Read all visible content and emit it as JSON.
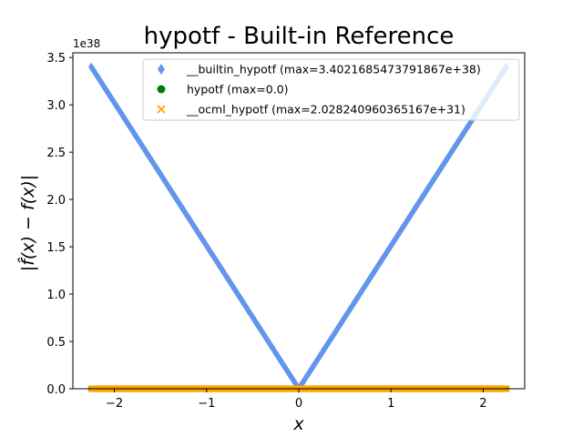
{
  "chart_data": {
    "type": "scatter",
    "title": "hypotf - Built-in Reference",
    "xlabel": "x",
    "ylabel": "|f̂(x) − f(x)|",
    "y_multiplier": "1e38",
    "xlim": [
      -2.45,
      2.45
    ],
    "ylim": [
      0,
      3.55
    ],
    "x_ticks": [
      -2,
      -1,
      0,
      1,
      2
    ],
    "x_tick_labels": [
      "−2",
      "−1",
      "0",
      "1",
      "2"
    ],
    "y_ticks": [
      0.0,
      0.5,
      1.0,
      1.5,
      2.0,
      2.5,
      3.0,
      3.5
    ],
    "y_tick_labels": [
      "0.0",
      "0.5",
      "1.0",
      "1.5",
      "2.0",
      "2.5",
      "3.0",
      "3.5"
    ],
    "grid": false,
    "legend_position": "top-right",
    "series": [
      {
        "name": "__builtin_hypotf (max=3.4021685473791867e+38)",
        "marker": "diamond",
        "color": "#6495ed",
        "shape": "V-shaped: y = 1.51e38 * |x| for x in [-2.25, 2.25]",
        "x": [
          -2.25,
          -2.0,
          -1.5,
          -1.0,
          -0.5,
          0.0,
          0.5,
          1.0,
          1.5,
          2.0,
          2.25
        ],
        "y": [
          3.4,
          3.02,
          2.27,
          1.51,
          0.76,
          0.0,
          0.76,
          1.51,
          2.27,
          3.02,
          3.4
        ]
      },
      {
        "name": "hypotf (max=0.0)",
        "marker": "circle",
        "color": "#008000",
        "x": [
          -2.25,
          2.25
        ],
        "y": [
          0.0,
          0.0
        ]
      },
      {
        "name": "__ocml_hypotf (max=2.028240960365167e+31)",
        "marker": "x",
        "color": "#ffa500",
        "x": [
          -2.25,
          2.25
        ],
        "y": [
          0.0,
          0.0
        ]
      }
    ]
  }
}
